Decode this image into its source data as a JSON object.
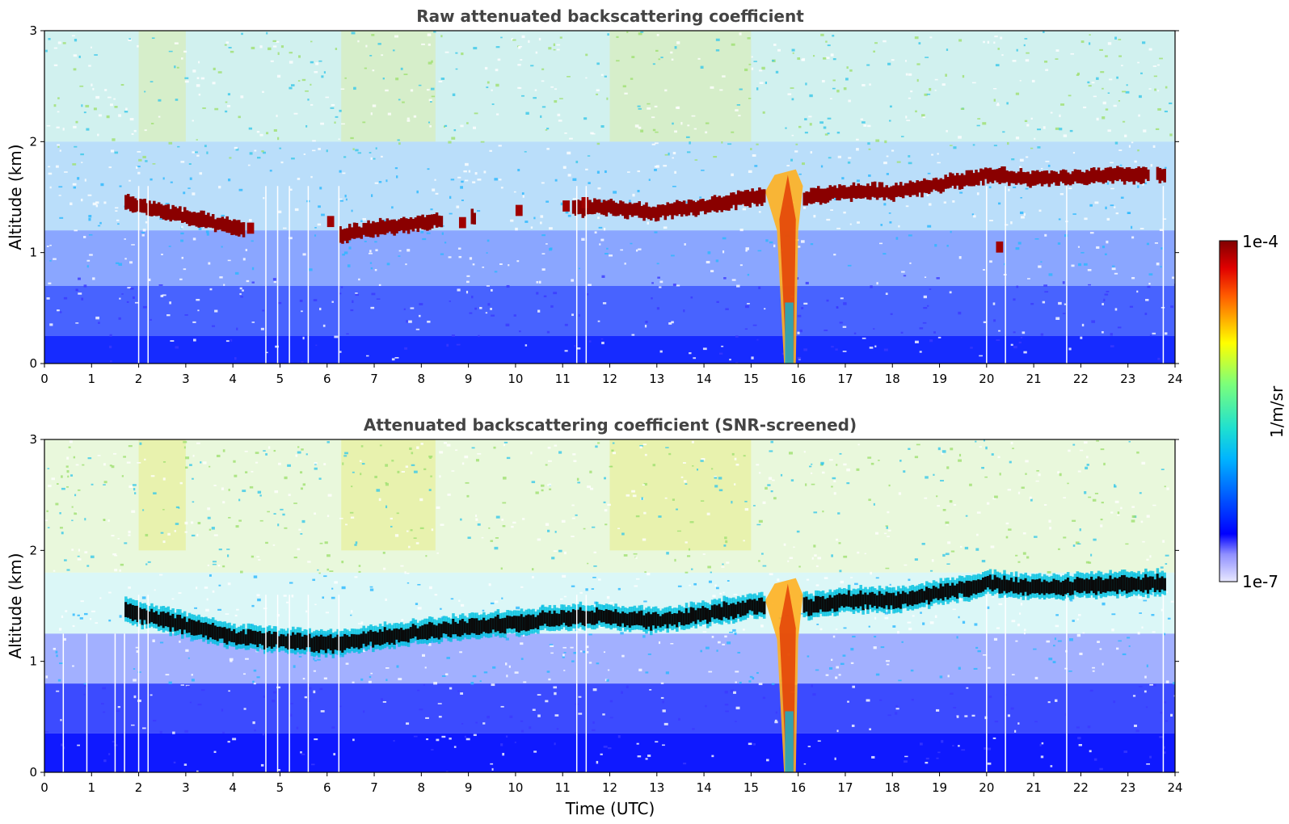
{
  "colorbar": {
    "max_label": "1e-4",
    "min_label": "1e-7",
    "unit_label": "1/m/sr",
    "colormap": "jet",
    "scale": "log",
    "range": [
      1e-07,
      0.0001
    ]
  },
  "chart_data": [
    {
      "type": "heatmap",
      "title": "Raw attenuated backscattering coefficient",
      "xlabel": "",
      "ylabel": "Altitude (km)",
      "xlim": [
        0,
        24
      ],
      "ylim": [
        0,
        3
      ],
      "xticks": [
        0,
        1,
        2,
        3,
        4,
        5,
        6,
        7,
        8,
        9,
        10,
        11,
        12,
        13,
        14,
        15,
        16,
        17,
        18,
        19,
        20,
        21,
        22,
        23,
        24
      ],
      "yticks": [
        0,
        1,
        2,
        3
      ],
      "colorbar": "log 1e-7 to 1e-4",
      "cloud_layer": {
        "time": [
          1.7,
          3.0,
          4.0,
          6.2,
          7.0,
          8.3,
          11.2,
          12.0,
          13.0,
          14.0,
          15.0,
          16.2,
          17.0,
          18.0,
          19.0,
          20.0,
          21.0,
          22.0,
          23.0,
          23.8
        ],
        "altitude_km": [
          1.45,
          1.32,
          1.22,
          1.15,
          1.22,
          1.28,
          1.4,
          1.4,
          1.36,
          1.42,
          1.5,
          1.5,
          1.55,
          1.55,
          1.62,
          1.7,
          1.66,
          1.68,
          1.7,
          1.7
        ],
        "gaps_utc": [
          [
            4.2,
            6.2
          ],
          [
            8.4,
            9.0
          ],
          [
            9.1,
            11.2
          ],
          [
            23.45,
            23.6
          ]
        ]
      },
      "precipitation_shaft": {
        "time_range": [
          15.3,
          16.1
        ],
        "altitude_km": [
          0,
          1.75
        ]
      },
      "missing_profiles_utc": [
        2.0,
        2.2,
        4.7,
        4.95,
        5.2,
        5.6,
        6.25,
        11.3,
        11.5,
        20.0,
        20.4,
        21.7,
        23.75
      ]
    },
    {
      "type": "heatmap",
      "title": "Attenuated backscattering coefficient (SNR-screened)",
      "xlabel": "Time (UTC)",
      "ylabel": "Altitude (km)",
      "xlim": [
        0,
        24
      ],
      "ylim": [
        0,
        3
      ],
      "xticks": [
        0,
        1,
        2,
        3,
        4,
        5,
        6,
        7,
        8,
        9,
        10,
        11,
        12,
        13,
        14,
        15,
        16,
        17,
        18,
        19,
        20,
        21,
        22,
        23,
        24
      ],
      "yticks": [
        0,
        1,
        2,
        3
      ],
      "colorbar": "log 1e-7 to 1e-4",
      "cloud_layer": {
        "time": [
          1.7,
          3.0,
          4.0,
          6.2,
          7.0,
          8.3,
          11.2,
          12.0,
          13.0,
          14.0,
          15.0,
          16.2,
          17.0,
          18.0,
          19.0,
          20.0,
          21.0,
          22.0,
          23.0,
          23.8
        ],
        "altitude_km": [
          1.45,
          1.32,
          1.22,
          1.15,
          1.22,
          1.28,
          1.4,
          1.4,
          1.36,
          1.42,
          1.5,
          1.5,
          1.55,
          1.55,
          1.62,
          1.7,
          1.66,
          1.68,
          1.7,
          1.7
        ],
        "gaps_utc": []
      },
      "precipitation_shaft": {
        "time_range": [
          15.3,
          16.1
        ],
        "altitude_km": [
          0,
          1.75
        ]
      },
      "missing_profiles_utc": [
        0.4,
        0.9,
        1.5,
        1.7,
        2.0,
        2.2,
        4.7,
        4.95,
        5.2,
        5.6,
        6.25,
        11.3,
        11.5,
        20.0,
        20.4,
        21.7,
        23.75
      ]
    }
  ]
}
